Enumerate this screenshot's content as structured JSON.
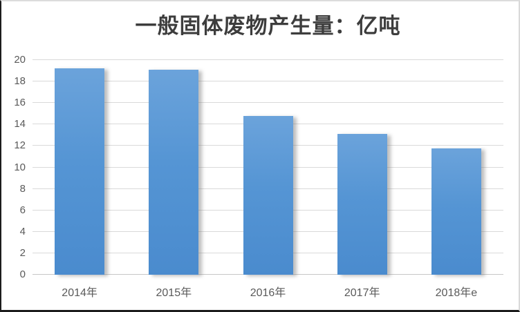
{
  "chart_data": {
    "type": "bar",
    "title": "一般固体废物产生量：亿吨",
    "categories": [
      "2014年",
      "2015年",
      "2016年",
      "2017年",
      "2018年e"
    ],
    "values": [
      19.2,
      19.1,
      14.8,
      13.1,
      11.8
    ],
    "xlabel": "",
    "ylabel": "",
    "ylim": [
      0,
      20
    ],
    "ytick_step": 2,
    "yticks": [
      0,
      2,
      4,
      6,
      8,
      10,
      12,
      14,
      16,
      18,
      20
    ],
    "grid": true,
    "legend": false,
    "colors": {
      "bar_gradient_top": "#6ba3db",
      "bar_gradient_mid": "#5595d4",
      "bar_gradient_bottom": "#4a8bce",
      "gridline": "#d9d9d9",
      "axis_text": "#595959",
      "title_text": "#3d3d3d"
    }
  }
}
